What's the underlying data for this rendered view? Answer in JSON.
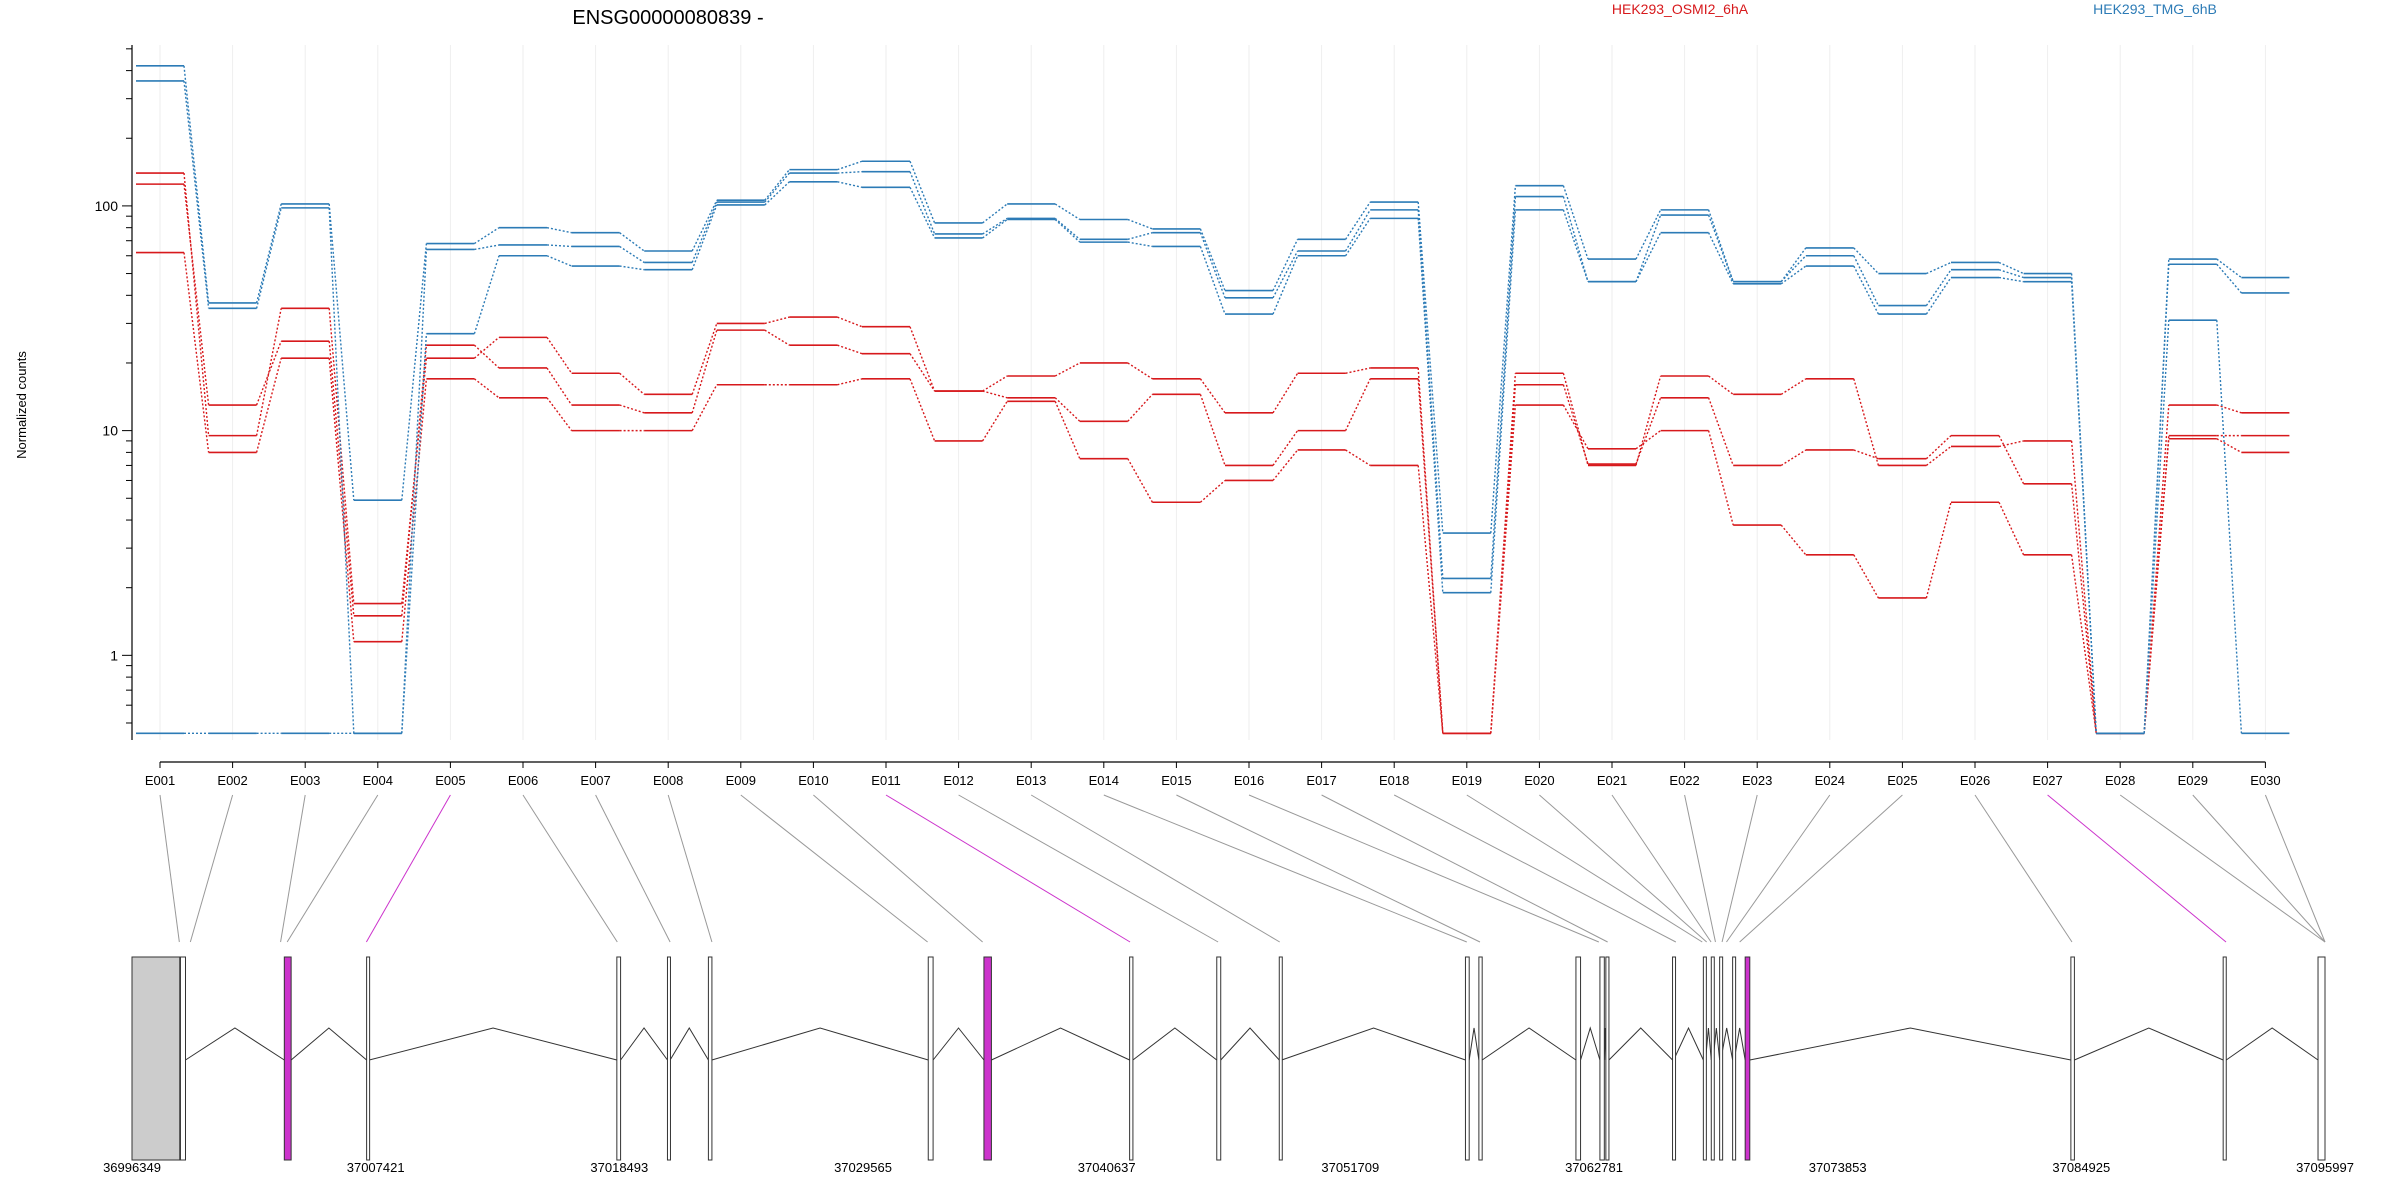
{
  "title": "ENSG00000080839 -",
  "legend": [
    {
      "label": "HEK293_OSMI2_6hA",
      "color": "#d7191c"
    },
    {
      "label": "HEK293_TMG_6hB",
      "color": "#2c7bb6"
    }
  ],
  "colors": {
    "highlight": "#cc33cc",
    "exon_fill": "#cccccc",
    "grid": "#eeeeee"
  },
  "chart_data": {
    "type": "line",
    "ylabel": "Normalized counts",
    "xlabel": "",
    "yscale": "log",
    "ylim": [
      0.42,
      520
    ],
    "yticks": [
      1,
      10,
      100
    ],
    "grid": "vertical",
    "legend_position": "top",
    "categories": [
      "E001",
      "E002",
      "E003",
      "E004",
      "E005",
      "E006",
      "E007",
      "E008",
      "E009",
      "E010",
      "E011",
      "E012",
      "E013",
      "E014",
      "E015",
      "E016",
      "E017",
      "E018",
      "E019",
      "E020",
      "E021",
      "E022",
      "E023",
      "E024",
      "E025",
      "E026",
      "E027",
      "E028",
      "E029",
      "E030"
    ],
    "series": [
      {
        "group": "HEK293_OSMI2_6hA",
        "color": "#d7191c",
        "values": [
          140,
          9.5,
          35,
          1.7,
          21,
          26,
          18,
          14.5,
          30,
          32,
          29,
          15,
          17.5,
          20,
          17,
          12,
          18,
          19,
          0.45,
          18,
          7,
          17.5,
          14.5,
          17,
          7,
          8.5,
          9,
          0.45,
          13,
          12
        ]
      },
      {
        "group": "HEK293_OSMI2_6hA",
        "color": "#d7191c",
        "values": [
          125,
          13,
          25,
          1.5,
          24,
          19,
          13,
          12,
          28,
          24,
          22,
          15,
          14,
          11,
          14.5,
          7,
          10,
          17,
          0.45,
          16,
          7.1,
          14,
          7,
          8.2,
          7.5,
          9.5,
          5.8,
          0.45,
          9.5,
          9.5
        ]
      },
      {
        "group": "HEK293_OSMI2_6hA",
        "color": "#d7191c",
        "values": [
          62,
          8,
          21,
          1.15,
          17,
          14,
          10,
          10,
          16,
          16,
          17,
          9,
          13.5,
          7.5,
          4.8,
          6,
          8.2,
          7,
          0.45,
          13,
          8.3,
          10,
          3.8,
          2.8,
          1.8,
          4.8,
          2.8,
          0.45,
          9.2,
          8
        ]
      },
      {
        "group": "HEK293_TMG_6hB",
        "color": "#2c7bb6",
        "values": [
          420,
          37,
          102,
          4.9,
          68,
          80,
          76,
          63,
          106,
          145,
          158,
          84,
          102,
          87,
          79,
          42,
          71,
          104,
          3.5,
          123,
          58,
          96,
          46,
          65,
          50,
          56,
          50,
          0.45,
          58,
          48
        ]
      },
      {
        "group": "HEK293_TMG_6hB",
        "color": "#2c7bb6",
        "values": [
          360,
          35,
          98,
          0.45,
          64,
          67,
          66,
          56,
          104,
          140,
          142,
          75,
          88,
          71,
          76,
          39,
          63,
          96,
          2.2,
          110,
          46,
          91,
          46,
          60,
          36,
          52,
          48,
          0.45,
          55,
          41
        ]
      },
      {
        "group": "HEK293_TMG_6hB",
        "color": "#2c7bb6",
        "values": [
          0.45,
          0.45,
          0.45,
          0.45,
          27,
          60,
          54,
          52,
          101,
          128,
          121,
          72,
          87,
          69,
          66,
          33,
          60,
          88,
          1.9,
          96,
          46,
          76,
          45,
          54,
          33,
          48,
          46,
          0.45,
          31,
          0.45
        ]
      }
    ],
    "highlighted_exons": [
      "E005",
      "E011",
      "E027"
    ],
    "genome_ticks": [
      "36996349",
      "37007421",
      "37018493",
      "37029565",
      "37040637",
      "37051709",
      "37062781",
      "37073853",
      "37084925",
      "37095997"
    ],
    "genome_range": [
      36996349,
      37095997
    ],
    "exon_starts": [
      36996349,
      36998550,
      37003270,
      37007010,
      37018380,
      37020680,
      37022540,
      37032530,
      37035060,
      37041680,
      37045640,
      37048480,
      37056940,
      37057550,
      37061960,
      37063050,
      37063320,
      37066350,
      37067750,
      37068110,
      37068490,
      37069080,
      37069650,
      37084450,
      37091370,
      37095680
    ],
    "exon_ends": [
      36998520,
      36998780,
      37003580,
      37007130,
      37018550,
      37020800,
      37022700,
      37032750,
      37035400,
      37041830,
      37045820,
      37048590,
      37057110,
      37057700,
      37062170,
      37063250,
      37063460,
      37066400,
      37067850,
      37068190,
      37068540,
      37069150,
      37069860,
      37084610,
      37091510,
      37095997
    ],
    "exon_highlight_flags": [
      false,
      false,
      true,
      false,
      false,
      false,
      false,
      false,
      true,
      false,
      false,
      false,
      false,
      false,
      false,
      false,
      false,
      false,
      false,
      false,
      false,
      false,
      true,
      false,
      false,
      false
    ],
    "bin_genomic_positions": [
      36998500,
      36999000,
      37003100,
      37003400,
      37007000,
      37018400,
      37020800,
      37022700,
      37032500,
      37035000,
      37041700,
      37045700,
      37048500,
      37057000,
      37057600,
      37063000,
      37063400,
      37066500,
      37067700,
      37067900,
      37068100,
      37068300,
      37068600,
      37068800,
      37069400,
      37084500,
      37091500,
      37095997,
      37096000,
      37096100
    ]
  }
}
